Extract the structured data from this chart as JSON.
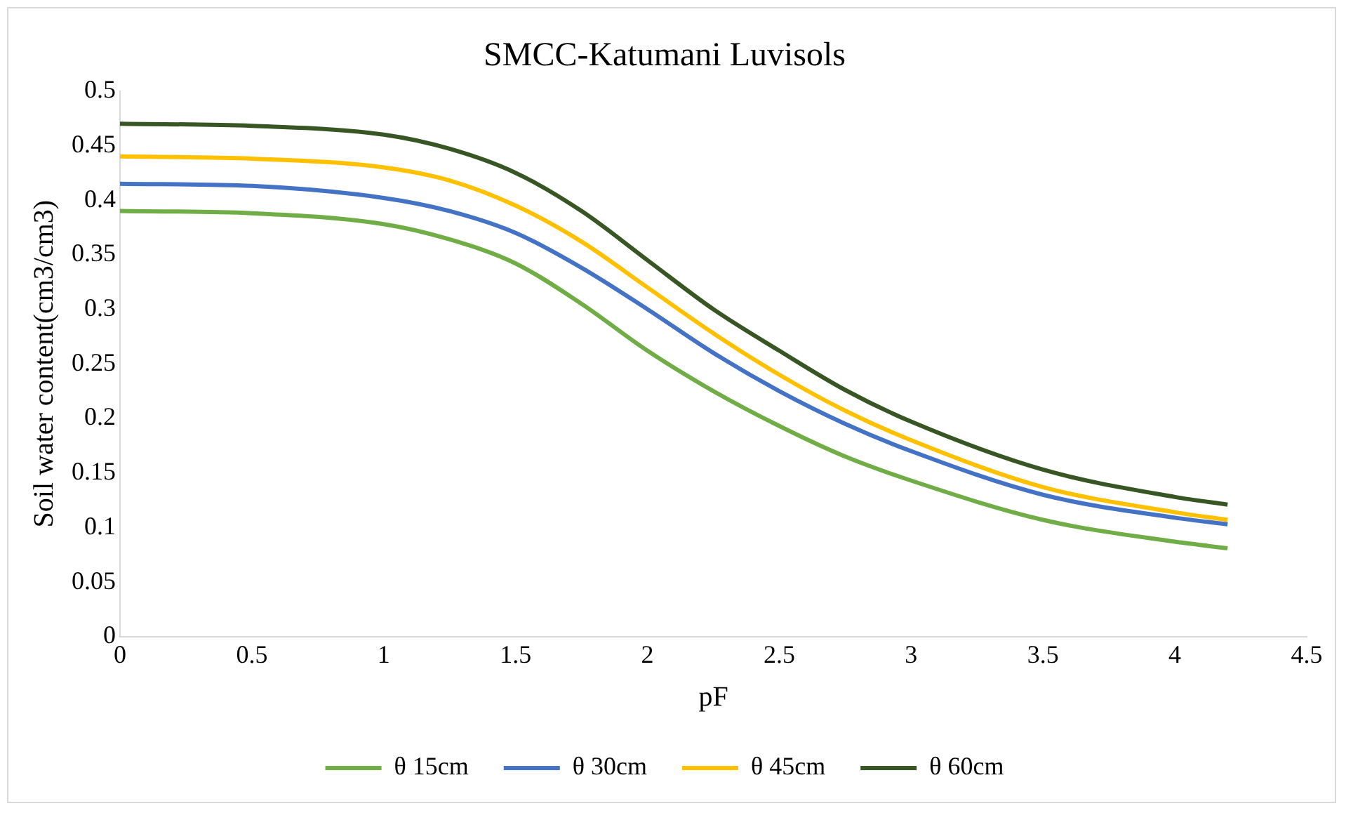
{
  "chart_data": {
    "type": "line",
    "title": "SMCC-Katumani Luvisols",
    "xlabel": "pF",
    "ylabel": "Soil water content(cm3/cm3)",
    "x": [
      0,
      0.5,
      1,
      1.25,
      1.5,
      1.75,
      2,
      2.25,
      2.5,
      2.75,
      3,
      3.5,
      4,
      4.2
    ],
    "series": [
      {
        "name": "θ 15cm",
        "color": "#70ad47",
        "values": [
          0.39,
          0.388,
          0.378,
          0.364,
          0.342,
          0.305,
          0.262,
          0.225,
          0.193,
          0.165,
          0.143,
          0.107,
          0.087,
          0.081
        ]
      },
      {
        "name": "θ 30cm",
        "color": "#4472c4",
        "values": [
          0.415,
          0.413,
          0.402,
          0.39,
          0.37,
          0.338,
          0.3,
          0.26,
          0.225,
          0.195,
          0.17,
          0.13,
          0.109,
          0.103
        ]
      },
      {
        "name": "θ 45cm",
        "color": "#ffc000",
        "values": [
          0.44,
          0.438,
          0.43,
          0.418,
          0.395,
          0.362,
          0.32,
          0.278,
          0.24,
          0.207,
          0.18,
          0.137,
          0.114,
          0.107
        ]
      },
      {
        "name": "θ 60cm",
        "color": "#375623",
        "values": [
          0.47,
          0.468,
          0.46,
          0.447,
          0.425,
          0.39,
          0.345,
          0.3,
          0.262,
          0.226,
          0.197,
          0.153,
          0.128,
          0.121
        ]
      }
    ],
    "xlim": [
      0,
      4.5
    ],
    "xticks": [
      0,
      0.5,
      1,
      1.5,
      2,
      2.5,
      3,
      3.5,
      4,
      4.5
    ],
    "ylim": [
      0,
      0.5
    ],
    "yticks": [
      0,
      0.05,
      0.1,
      0.15,
      0.2,
      0.25,
      0.3,
      0.35,
      0.4,
      0.45,
      0.5
    ],
    "grid": false,
    "legend": "bottom",
    "marker": "none",
    "line_style": "solid"
  }
}
